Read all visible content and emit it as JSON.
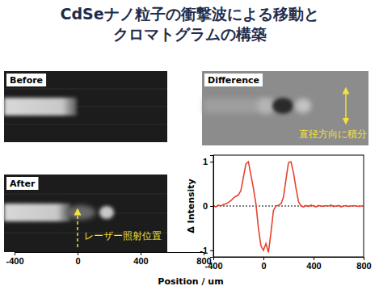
{
  "chart_data": [
    {
      "type": "image",
      "title": [
        "CdSeナノ粒子の衝撃波による移動と",
        "クロマトグラムの構築"
      ],
      "panels": [
        "Before",
        "After",
        "Difference"
      ],
      "annotations": [
        "レーザー照射位置",
        "直径方向に積分"
      ],
      "xlim": [
        -400,
        800
      ],
      "xticks": [
        -400,
        0,
        400,
        800
      ]
    },
    {
      "type": "line",
      "xlabel": "Position / um",
      "ylabel": "Δ Intensity",
      "xlim": [
        -400,
        800
      ],
      "ylim": [
        -1.15,
        1.15
      ],
      "xticks": [
        -400,
        0,
        400,
        800
      ],
      "yticks": [
        -1,
        0,
        1
      ],
      "x": [
        -400,
        -380,
        -360,
        -340,
        -320,
        -300,
        -280,
        -260,
        -240,
        -220,
        -200,
        -180,
        -160,
        -140,
        -120,
        -100,
        -80,
        -60,
        -40,
        -20,
        0,
        20,
        40,
        60,
        80,
        100,
        120,
        140,
        160,
        180,
        200,
        220,
        240,
        260,
        280,
        300,
        320,
        340,
        360,
        380,
        400,
        420,
        440,
        460,
        480,
        500,
        520,
        540,
        560,
        580,
        600,
        620,
        640,
        660,
        680,
        700,
        720,
        740,
        760,
        780,
        800
      ],
      "series": [
        {
          "color": "#e8412c",
          "values": [
            0.0,
            -0.02,
            0.02,
            0.0,
            0.03,
            0.05,
            0.08,
            0.12,
            0.18,
            0.22,
            0.25,
            0.35,
            0.65,
            0.95,
            1.0,
            0.7,
            0.4,
            0.05,
            -0.5,
            -0.9,
            -1.0,
            -0.85,
            -1.05,
            -0.6,
            -0.1,
            0.0,
            0.02,
            0.05,
            0.2,
            0.6,
            0.98,
            1.0,
            0.75,
            0.4,
            0.1,
            0.0,
            -0.02,
            0.01,
            -0.01,
            0.02,
            0.0,
            -0.02,
            0.01,
            0.0,
            -0.01,
            0.01,
            0.0,
            0.02,
            -0.01,
            0.0,
            0.01,
            -0.02,
            0.0,
            0.01,
            -0.01,
            0.0,
            0.01,
            0.0,
            -0.01,
            0.0,
            0.01
          ]
        }
      ]
    }
  ]
}
